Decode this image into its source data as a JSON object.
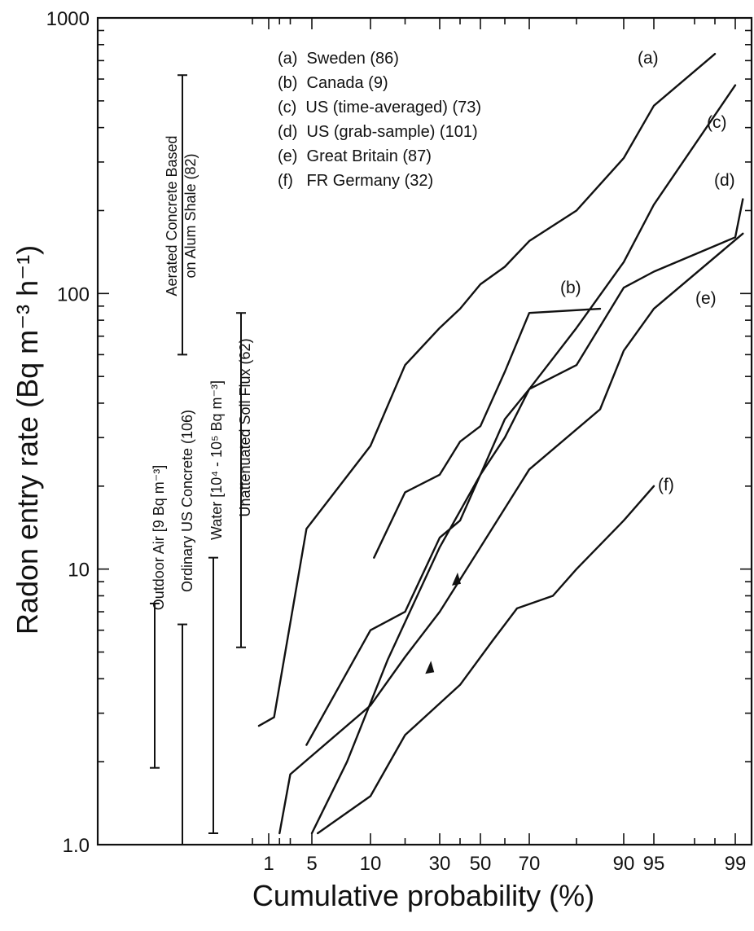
{
  "chart_data": {
    "type": "line",
    "xlabel": "Cumulative probability (%)",
    "ylabel": "Radon entry rate (Bq m⁻³ h⁻¹)",
    "x_scale": "probability",
    "y_scale": "log",
    "ylim": [
      1,
      1000
    ],
    "x_ticks": [
      "1",
      "5",
      "10",
      "30",
      "50",
      "70",
      "90",
      "95",
      "99"
    ],
    "y_ticks": [
      "1.0",
      "10",
      "100",
      "1000"
    ],
    "legend": [
      "(a)  Sweden (86)",
      "(b)  Canada (9)",
      "(c)  US (time-averaged) (73)",
      "(d)  US (grab-sample) (101)",
      "(e)  Great Britain (87)",
      "(f)   FR Germany (32)"
    ],
    "series": [
      {
        "label": "(a)",
        "points": [
          [
            0.7,
            2.7
          ],
          [
            1.5,
            2.9
          ],
          [
            4.5,
            14
          ],
          [
            10,
            28
          ],
          [
            20,
            55
          ],
          [
            30,
            75
          ],
          [
            40,
            88
          ],
          [
            50,
            108
          ],
          [
            60,
            125
          ],
          [
            70,
            155
          ],
          [
            80,
            200
          ],
          [
            90,
            310
          ],
          [
            95,
            480
          ],
          [
            98,
            740
          ]
        ]
      },
      {
        "label": "(b)",
        "points": [
          [
            11,
            11
          ],
          [
            20,
            19
          ],
          [
            30,
            22
          ],
          [
            40,
            29
          ],
          [
            50,
            33
          ],
          [
            60,
            52
          ],
          [
            70,
            85
          ],
          [
            85,
            88
          ]
        ]
      },
      {
        "label": "(c)",
        "points": [
          [
            5,
            1.1
          ],
          [
            8,
            2
          ],
          [
            15,
            4.7
          ],
          [
            30,
            12
          ],
          [
            50,
            22
          ],
          [
            60,
            30
          ],
          [
            70,
            45
          ],
          [
            80,
            75
          ],
          [
            90,
            130
          ],
          [
            95,
            210
          ],
          [
            99,
            570
          ]
        ]
      },
      {
        "label": "(d)",
        "points": [
          [
            4.5,
            2.3
          ],
          [
            10,
            6
          ],
          [
            20,
            7
          ],
          [
            30,
            13
          ],
          [
            40,
            15
          ],
          [
            50,
            22
          ],
          [
            60,
            35
          ],
          [
            70,
            45
          ],
          [
            80,
            55
          ],
          [
            90,
            105
          ],
          [
            95,
            120
          ],
          [
            99,
            160
          ],
          [
            99.7,
            220
          ]
        ]
      },
      {
        "label": "(e)",
        "points": [
          [
            2,
            1.1
          ],
          [
            3,
            1.8
          ],
          [
            10,
            3.2
          ],
          [
            20,
            4.8
          ],
          [
            30,
            7
          ],
          [
            50,
            12
          ],
          [
            70,
            23
          ],
          [
            85,
            38
          ],
          [
            90,
            62
          ],
          [
            95,
            88
          ],
          [
            99.7,
            165
          ]
        ]
      },
      {
        "label": "(f)",
        "points": [
          [
            5.5,
            1.1
          ],
          [
            10,
            1.5
          ],
          [
            20,
            2.5
          ],
          [
            40,
            3.8
          ],
          [
            55,
            5.5
          ],
          [
            65,
            7.2
          ],
          [
            75,
            8
          ],
          [
            80,
            10
          ],
          [
            90,
            15
          ],
          [
            95,
            20
          ]
        ]
      }
    ],
    "ranges": [
      {
        "label": "Outdoor Air [9 Bq m⁻³]",
        "low": 1.9,
        "high": 7.5
      },
      {
        "label": "Ordinary US Concrete (106)",
        "low": 1.0,
        "high": 6.3
      },
      {
        "label": "Water [10⁴ - 10⁵ Bq m⁻³]",
        "low": 1.1,
        "high": 11
      },
      {
        "label": "Unattenuated Soil Flux (62)",
        "low": 5.2,
        "high": 85
      },
      {
        "label": "Aerated Concrete Based on Alum Shale (82)",
        "low": 60,
        "high": 620
      }
    ],
    "grid": false
  }
}
